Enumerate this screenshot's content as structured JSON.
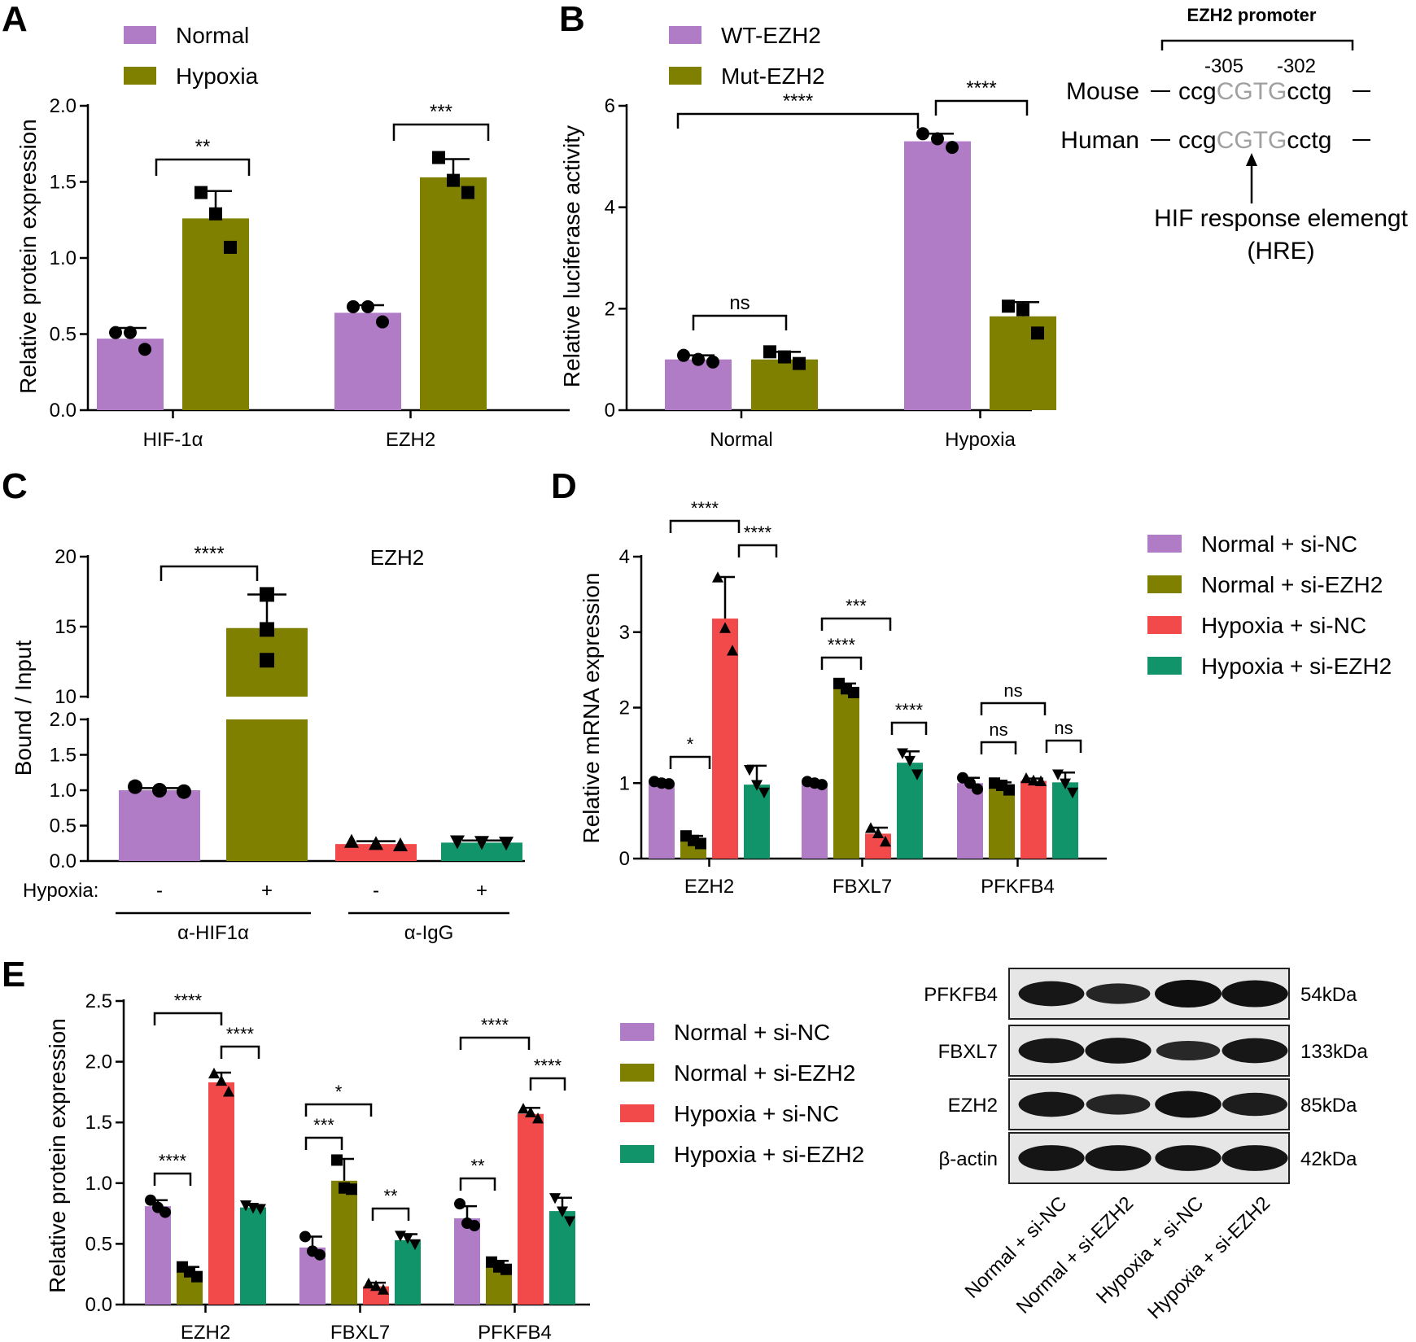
{
  "figure": {
    "panel_letters": [
      "A",
      "B",
      "C",
      "D",
      "E"
    ]
  },
  "colors": {
    "purple": "#b07cc6",
    "olive": "#808000",
    "red": "#f24a4a",
    "green": "#12946a",
    "black": "#000000",
    "gray": "#a0a0a0"
  },
  "chart_data": [
    {
      "panel": "A",
      "type": "bar",
      "ylabel": "Relative protein expression",
      "ylim": [
        0,
        2.0
      ],
      "yticks": [
        "0.0",
        "0.5",
        "1.0",
        "1.5",
        "2.0"
      ],
      "categories": [
        "HIF-1α",
        "EZH2"
      ],
      "legend": [
        "Normal",
        "Hypoxia"
      ],
      "series": [
        {
          "name": "Normal",
          "values": [
            0.47,
            0.64
          ],
          "err": [
            0.07,
            0.05
          ],
          "points": [
            [
              0.51,
              0.51,
              0.4
            ],
            [
              0.68,
              0.68,
              0.58
            ]
          ],
          "marker": "circle"
        },
        {
          "name": "Hypoxia",
          "values": [
            1.26,
            1.53
          ],
          "err": [
            0.18,
            0.12
          ],
          "points": [
            [
              1.43,
              1.29,
              1.07
            ],
            [
              1.66,
              1.51,
              1.43
            ]
          ],
          "marker": "square"
        }
      ],
      "sig": [
        {
          "label": "**"
        },
        {
          "label": "***"
        }
      ]
    },
    {
      "panel": "B",
      "type": "bar",
      "ylabel": "Relative luciferase activity",
      "ylim": [
        0,
        6
      ],
      "yticks": [
        "0",
        "2",
        "4",
        "6"
      ],
      "categories": [
        "Normal",
        "Hypoxia"
      ],
      "legend": [
        "WT-EZH2",
        "Mut-EZH2"
      ],
      "series": [
        {
          "name": "WT-EZH2",
          "values": [
            1.0,
            5.3
          ],
          "err": [
            0.08,
            0.15
          ],
          "points": [
            [
              1.08,
              1.0,
              0.95
            ],
            [
              5.45,
              5.35,
              5.18
            ]
          ],
          "marker": "circle"
        },
        {
          "name": "Mut-EZH2",
          "values": [
            1.0,
            1.85
          ],
          "err": [
            0.15,
            0.28
          ],
          "points": [
            [
              1.15,
              1.05,
              0.92
            ],
            [
              2.05,
              1.98,
              1.52
            ]
          ],
          "marker": "square"
        }
      ],
      "sig": [
        {
          "label": "ns"
        },
        {
          "label": "****"
        },
        {
          "label": "****"
        }
      ]
    },
    {
      "panel": "C",
      "type": "bar",
      "ylabel": "Bound / Input",
      "title": "EZH2",
      "yticks_low": [
        "0.0",
        "0.5",
        "1.0",
        "1.5",
        "2.0"
      ],
      "yticks_high": [
        "10",
        "15",
        "20"
      ],
      "categories": [
        "α-HIF1α -",
        "α-HIF1α +",
        "α-IgG -",
        "α-IgG +"
      ],
      "xrow_label": "Hypoxia:",
      "xrow_signs": [
        "-",
        "+",
        "-",
        "+"
      ],
      "groups": [
        "α-HIF1α",
        "α-IgG"
      ],
      "values": [
        1.0,
        14.9,
        0.24,
        0.26
      ],
      "err": [
        0.03,
        2.4,
        0.04,
        0.03
      ],
      "points": [
        [
          1.05,
          1.0,
          0.98
        ],
        [
          17.3,
          14.8,
          12.6
        ],
        [
          0.27,
          0.24,
          0.22
        ],
        [
          0.28,
          0.27,
          0.26
        ]
      ],
      "markers": [
        "circle",
        "square",
        "triangle",
        "invtriangle"
      ],
      "sig": [
        {
          "label": "****"
        }
      ]
    },
    {
      "panel": "D",
      "type": "bar",
      "ylabel": "Relative mRNA expression",
      "ylim": [
        0,
        4
      ],
      "yticks": [
        "0",
        "1",
        "2",
        "3",
        "4"
      ],
      "categories": [
        "EZH2",
        "FBXL7",
        "PFKFB4"
      ],
      "legend": [
        "Normal + si-NC",
        "Normal + si-EZH2",
        "Hypoxia + si-NC",
        "Hypoxia + si-EZH2"
      ],
      "series": [
        {
          "name": "Normal + si-NC",
          "values": [
            1.0,
            1.0,
            1.0
          ],
          "err": [
            0.02,
            0.02,
            0.07
          ],
          "points": [
            [
              1.02,
              1.0,
              0.99
            ],
            [
              1.02,
              1.0,
              0.98
            ],
            [
              1.07,
              1.0,
              0.92
            ]
          ],
          "marker": "circle"
        },
        {
          "name": "Normal + si-EZH2",
          "values": [
            0.25,
            2.25,
            0.97
          ],
          "err": [
            0.05,
            0.07,
            0.04
          ],
          "points": [
            [
              0.3,
              0.24,
              0.2
            ],
            [
              2.32,
              2.25,
              2.2
            ],
            [
              1.0,
              0.97,
              0.91
            ]
          ],
          "marker": "square"
        },
        {
          "name": "Hypoxia + si-NC",
          "values": [
            3.18,
            0.33,
            1.03
          ],
          "err": [
            0.55,
            0.08,
            0.03
          ],
          "points": [
            [
              3.72,
              3.05,
              2.75
            ],
            [
              0.4,
              0.33,
              0.22
            ],
            [
              1.06,
              1.03,
              1.02
            ]
          ],
          "marker": "triangle"
        },
        {
          "name": "Hypoxia + si-EZH2",
          "values": [
            0.98,
            1.27,
            1.01
          ],
          "err": [
            0.25,
            0.15,
            0.13
          ],
          "points": [
            [
              1.18,
              0.98,
              0.88
            ],
            [
              1.4,
              1.3,
              1.12
            ],
            [
              1.12,
              1.0,
              0.88
            ]
          ],
          "marker": "invtriangle"
        }
      ],
      "sig": [
        {
          "label": "****"
        },
        {
          "label": "****"
        },
        {
          "label": "*"
        },
        {
          "label": "***"
        },
        {
          "label": "****"
        },
        {
          "label": "****"
        },
        {
          "label": "ns"
        },
        {
          "label": "ns"
        },
        {
          "label": "ns"
        }
      ]
    },
    {
      "panel": "E",
      "type": "bar",
      "ylabel": "Relative protein expression",
      "ylim": [
        0,
        2.5
      ],
      "yticks": [
        "0.0",
        "0.5",
        "1.0",
        "1.5",
        "2.0",
        "2.5"
      ],
      "categories": [
        "EZH2",
        "FBXL7",
        "PFKFB4"
      ],
      "legend": [
        "Normal + si-NC",
        "Normal + si-EZH2",
        "Hypoxia + si-NC",
        "Hypoxia + si-EZH2"
      ],
      "series": [
        {
          "name": "Normal + si-NC",
          "values": [
            0.81,
            0.47,
            0.71
          ],
          "err": [
            0.05,
            0.09,
            0.1
          ],
          "points": [
            [
              0.86,
              0.8,
              0.76
            ],
            [
              0.56,
              0.44,
              0.41
            ],
            [
              0.83,
              0.67,
              0.65
            ]
          ],
          "marker": "circle"
        },
        {
          "name": "Normal + si-EZH2",
          "values": [
            0.27,
            1.02,
            0.32
          ],
          "err": [
            0.04,
            0.18,
            0.04
          ],
          "points": [
            [
              0.31,
              0.27,
              0.23
            ],
            [
              1.19,
              0.96,
              0.95
            ],
            [
              0.35,
              0.31,
              0.29
            ]
          ],
          "marker": "square"
        },
        {
          "name": "Hypoxia + si-NC",
          "values": [
            1.83,
            0.15,
            1.57
          ],
          "err": [
            0.08,
            0.03,
            0.05
          ],
          "points": [
            [
              1.9,
              1.84,
              1.75
            ],
            [
              0.17,
              0.15,
              0.12
            ],
            [
              1.61,
              1.58,
              1.53
            ]
          ],
          "marker": "triangle"
        },
        {
          "name": "Hypoxia + si-EZH2",
          "values": [
            0.8,
            0.53,
            0.77
          ],
          "err": [
            0.02,
            0.05,
            0.11
          ],
          "points": [
            [
              0.82,
              0.8,
              0.79
            ],
            [
              0.57,
              0.55,
              0.5
            ],
            [
              0.88,
              0.77,
              0.69
            ]
          ],
          "marker": "invtriangle"
        }
      ],
      "sig": [
        {
          "label": "****"
        },
        {
          "label": "****"
        },
        {
          "label": "****"
        },
        {
          "label": "*"
        },
        {
          "label": "***"
        },
        {
          "label": "**"
        },
        {
          "label": "****"
        },
        {
          "label": "**"
        },
        {
          "label": "****"
        }
      ]
    }
  ],
  "promoter": {
    "title": "EZH2 promoter",
    "pos_left": "-305",
    "pos_right": "-302",
    "rows": [
      {
        "species": "Mouse",
        "pre": "ccg",
        "core": "CGTG",
        "post": "cctg"
      },
      {
        "species": "Human",
        "pre": "ccg",
        "core": "CGTG",
        "post": "cctg"
      }
    ],
    "hre_line1": "HIF response elemengt",
    "hre_line2": "(HRE)"
  },
  "western_blot": {
    "bands": [
      {
        "protein": "PFKFB4",
        "size": "54kDa",
        "intensity": [
          0.85,
          0.6,
          1.0,
          0.95
        ]
      },
      {
        "protein": "FBXL7",
        "size": "133kDa",
        "intensity": [
          0.85,
          0.9,
          0.55,
          0.85
        ]
      },
      {
        "protein": "EZH2",
        "size": "85kDa",
        "intensity": [
          0.85,
          0.6,
          0.95,
          0.75
        ]
      },
      {
        "protein": "β-actin",
        "size": "42kDa",
        "intensity": [
          0.9,
          0.9,
          0.9,
          0.9
        ]
      }
    ],
    "lanes": [
      "Normal + si-NC",
      "Normal + si-EZH2",
      "Hypoxia + si-NC",
      "Hypoxia + si-EZH2"
    ]
  }
}
